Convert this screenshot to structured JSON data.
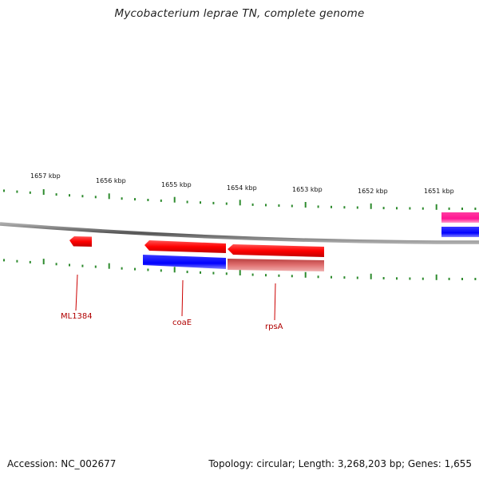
{
  "title": "Mycobacterium leprae TN, complete genome",
  "footer": {
    "accession": "Accession: NC_002677",
    "summary": "Topology: circular; Length: 3,268,203 bp; Genes: 1,655"
  },
  "ticks": [
    {
      "kbp": 1657,
      "label": "1657 kbp"
    },
    {
      "kbp": 1656,
      "label": "1656 kbp"
    },
    {
      "kbp": 1655,
      "label": "1655 kbp"
    },
    {
      "kbp": 1654,
      "label": "1654 kbp"
    },
    {
      "kbp": 1653,
      "label": "1653 kbp"
    },
    {
      "kbp": 1652,
      "label": "1652 kbp"
    },
    {
      "kbp": 1651,
      "label": "1651 kbp"
    }
  ],
  "genes": [
    {
      "label": "ML1384",
      "color": "#ff0000"
    },
    {
      "label": "coaE",
      "color": "#ff0000"
    },
    {
      "label": "rpsA",
      "color": "#ff0000"
    }
  ],
  "colors": {
    "gene": "#ff0000",
    "cds": "#0000ff",
    "pink_feature": "#ff1493",
    "rna_light": "#e06060",
    "tick": "#2e8b2e",
    "backbone": "#777777"
  }
}
